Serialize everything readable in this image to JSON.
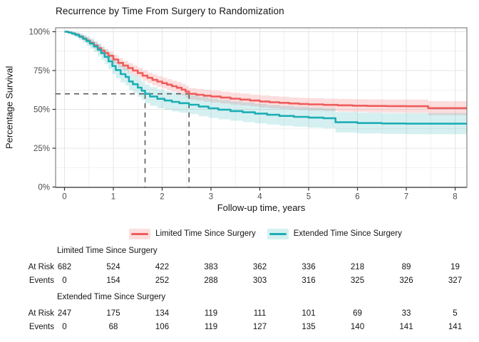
{
  "title": "Recurrence by Time From Surgery to Randomization",
  "chart_data": {
    "type": "line",
    "subtype": "kaplan-meier-step-with-ci",
    "title": "Recurrence by Time From Surgery to Randomization",
    "xlabel": "Follow-up time, years",
    "ylabel": "Percentage Survival",
    "xlim": [
      -0.18,
      8.24
    ],
    "ylim": [
      0,
      100
    ],
    "xticks": [
      0,
      1,
      2,
      3,
      4,
      5,
      6,
      7,
      8
    ],
    "yticks": [
      0,
      25,
      50,
      75,
      100
    ],
    "ytick_labels": [
      "0%",
      "25%",
      "50%",
      "75%",
      "100%"
    ],
    "grid": "major and minor, light gray on white",
    "legend_position": "bottom",
    "annotations": {
      "dashed_color": "#5a5a5a",
      "survival_level": 60,
      "crossing_times": [
        1.65,
        2.55
      ],
      "note": "dashed horizontal line at 60% survival with dashed vertical drop lines where each curve crosses it"
    },
    "series": [
      {
        "name": "Limited Time Since Surgery",
        "color": "#EE5C5C",
        "fill": "rgba(238,92,92,0.20)",
        "points": [
          [
            0,
            100,
            0
          ],
          [
            0.08,
            99.6,
            0.5
          ],
          [
            0.15,
            98.9,
            0.8
          ],
          [
            0.22,
            98.1,
            1.0
          ],
          [
            0.3,
            96.9,
            1.3
          ],
          [
            0.38,
            95.6,
            1.5
          ],
          [
            0.45,
            94.3,
            1.7
          ],
          [
            0.52,
            92.9,
            1.9
          ],
          [
            0.6,
            91.2,
            2.1
          ],
          [
            0.68,
            89.4,
            2.3
          ],
          [
            0.75,
            87.8,
            2.5
          ],
          [
            0.82,
            86.2,
            2.6
          ],
          [
            0.9,
            84.5,
            2.7
          ],
          [
            1.0,
            82.1,
            2.9
          ],
          [
            1.1,
            79.9,
            3.0
          ],
          [
            1.2,
            78.2,
            3.1
          ],
          [
            1.3,
            76.6,
            3.2
          ],
          [
            1.4,
            75.0,
            3.2
          ],
          [
            1.5,
            73.4,
            3.3
          ],
          [
            1.6,
            71.7,
            3.4
          ],
          [
            1.7,
            70.3,
            3.4
          ],
          [
            1.8,
            69.0,
            3.5
          ],
          [
            1.9,
            67.9,
            3.5
          ],
          [
            2.0,
            66.9,
            3.5
          ],
          [
            2.1,
            65.9,
            3.6
          ],
          [
            2.2,
            64.9,
            3.6
          ],
          [
            2.3,
            63.9,
            3.6
          ],
          [
            2.4,
            62.7,
            3.7
          ],
          [
            2.48,
            61.4,
            3.7
          ],
          [
            2.55,
            60.0,
            3.7
          ],
          [
            2.7,
            59.4,
            3.7
          ],
          [
            2.85,
            58.8,
            3.8
          ],
          [
            3.0,
            58.3,
            3.8
          ],
          [
            3.2,
            57.6,
            3.8
          ],
          [
            3.4,
            56.9,
            3.8
          ],
          [
            3.6,
            56.3,
            3.8
          ],
          [
            3.8,
            55.7,
            3.8
          ],
          [
            4.0,
            55.1,
            3.9
          ],
          [
            4.2,
            54.6,
            3.9
          ],
          [
            4.4,
            54.2,
            3.9
          ],
          [
            4.6,
            53.8,
            3.9
          ],
          [
            4.8,
            53.5,
            3.9
          ],
          [
            5.0,
            53.2,
            4.0
          ],
          [
            5.3,
            52.9,
            4.0
          ],
          [
            5.6,
            52.6,
            4.1
          ],
          [
            5.9,
            52.4,
            4.1
          ],
          [
            6.2,
            52.2,
            4.2
          ],
          [
            6.6,
            52.1,
            4.2
          ],
          [
            7.0,
            52.0,
            4.3
          ],
          [
            7.45,
            50.8,
            4.5
          ],
          [
            8.24,
            50.8,
            4.5
          ]
        ]
      },
      {
        "name": "Extended Time Since Surgery",
        "color": "#1CAEB4",
        "fill": "rgba(28,174,180,0.18)",
        "points": [
          [
            0,
            100,
            0
          ],
          [
            0.08,
            99.5,
            0.7
          ],
          [
            0.15,
            98.8,
            1.2
          ],
          [
            0.22,
            98.0,
            1.6
          ],
          [
            0.3,
            96.8,
            2.1
          ],
          [
            0.38,
            95.4,
            2.6
          ],
          [
            0.45,
            94.0,
            3.0
          ],
          [
            0.52,
            92.4,
            3.3
          ],
          [
            0.6,
            90.5,
            3.6
          ],
          [
            0.68,
            88.4,
            4.0
          ],
          [
            0.75,
            86.2,
            4.3
          ],
          [
            0.82,
            83.8,
            4.6
          ],
          [
            0.9,
            80.9,
            4.9
          ],
          [
            0.98,
            77.9,
            5.1
          ],
          [
            1.05,
            75.3,
            5.3
          ],
          [
            1.15,
            72.7,
            5.4
          ],
          [
            1.25,
            70.9,
            5.5
          ],
          [
            1.32,
            68.0,
            5.6
          ],
          [
            1.4,
            66.2,
            5.7
          ],
          [
            1.5,
            64.0,
            5.8
          ],
          [
            1.58,
            62.0,
            5.9
          ],
          [
            1.65,
            60.0,
            5.9
          ],
          [
            1.75,
            58.3,
            6.0
          ],
          [
            1.9,
            56.8,
            6.0
          ],
          [
            2.05,
            55.7,
            6.0
          ],
          [
            2.2,
            54.8,
            6.1
          ],
          [
            2.35,
            54.0,
            6.1
          ],
          [
            2.55,
            53.0,
            6.1
          ],
          [
            2.75,
            51.8,
            6.2
          ],
          [
            2.95,
            50.7,
            6.2
          ],
          [
            3.15,
            49.8,
            6.2
          ],
          [
            3.4,
            48.9,
            6.2
          ],
          [
            3.65,
            48.1,
            6.3
          ],
          [
            3.9,
            47.3,
            6.3
          ],
          [
            4.15,
            46.5,
            6.3
          ],
          [
            4.4,
            45.8,
            6.4
          ],
          [
            4.7,
            45.2,
            6.4
          ],
          [
            5.0,
            44.7,
            6.5
          ],
          [
            5.3,
            44.3,
            6.5
          ],
          [
            5.55,
            41.7,
            6.6
          ],
          [
            6.0,
            41.2,
            6.7
          ],
          [
            6.5,
            40.9,
            6.7
          ],
          [
            7.0,
            40.8,
            6.8
          ],
          [
            8.24,
            40.8,
            6.8
          ]
        ]
      }
    ]
  },
  "risk_table": {
    "time_columns": [
      0,
      1,
      2,
      3,
      4,
      5,
      6,
      7,
      8
    ],
    "groups": [
      {
        "name": "Limited Time Since Surgery",
        "rows": [
          {
            "label": "At Risk",
            "values": [
              "682",
              "524",
              "422",
              "383",
              "362",
              "336",
              "218",
              "89",
              "19"
            ]
          },
          {
            "label": "Events",
            "values": [
              "0",
              "154",
              "252",
              "288",
              "303",
              "316",
              "325",
              "326",
              "327"
            ]
          }
        ]
      },
      {
        "name": "Extended Time Since Surgery",
        "rows": [
          {
            "label": "At Risk",
            "values": [
              "247",
              "175",
              "134",
              "119",
              "111",
              "101",
              "69",
              "33",
              "5"
            ]
          },
          {
            "label": "Events",
            "values": [
              "0",
              "68",
              "106",
              "119",
              "127",
              "135",
              "140",
              "141",
              "141"
            ]
          }
        ]
      }
    ]
  }
}
